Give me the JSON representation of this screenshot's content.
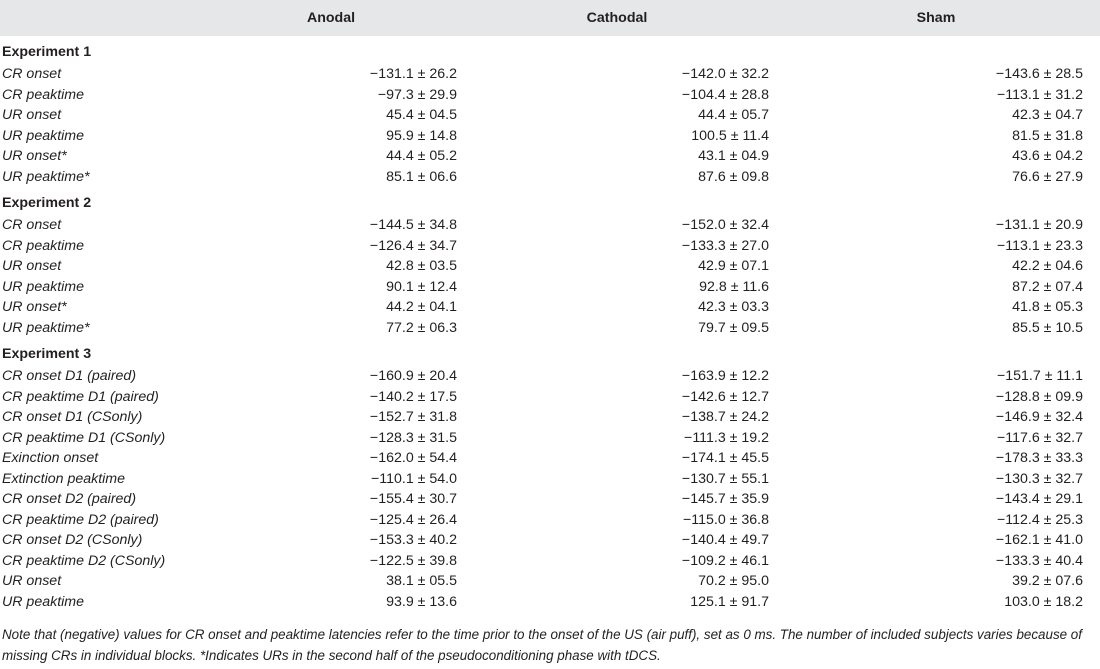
{
  "table": {
    "columns": [
      "",
      "Anodal",
      "Cathodal",
      "Sham"
    ],
    "sections": [
      {
        "title": "Experiment 1",
        "rows": [
          {
            "label": "CR onset",
            "values": [
              "−131.1 ± 26.2",
              "−142.0 ± 32.2",
              "−143.6 ± 28.5"
            ]
          },
          {
            "label": "CR peaktime",
            "values": [
              "−97.3 ± 29.9",
              "−104.4 ± 28.8",
              "−113.1 ± 31.2"
            ]
          },
          {
            "label": "UR onset",
            "values": [
              "45.4 ± 04.5",
              "44.4 ± 05.7",
              "42.3 ± 04.7"
            ]
          },
          {
            "label": "UR peaktime",
            "values": [
              "95.9 ± 14.8",
              "100.5 ± 11.4",
              "81.5 ± 31.8"
            ]
          },
          {
            "label": "UR onset*",
            "values": [
              "44.4 ± 05.2",
              "43.1 ± 04.9",
              "43.6 ± 04.2"
            ]
          },
          {
            "label": "UR peaktime*",
            "values": [
              "85.1 ± 06.6",
              "87.6 ± 09.8",
              "76.6 ± 27.9"
            ]
          }
        ]
      },
      {
        "title": "Experiment 2",
        "rows": [
          {
            "label": "CR onset",
            "values": [
              "−144.5 ± 34.8",
              "−152.0 ± 32.4",
              "−131.1 ± 20.9"
            ]
          },
          {
            "label": "CR peaktime",
            "values": [
              "−126.4 ± 34.7",
              "−133.3 ± 27.0",
              "−113.1 ± 23.3"
            ]
          },
          {
            "label": "UR onset",
            "values": [
              "42.8 ± 03.5",
              "42.9 ± 07.1",
              "42.2 ± 04.6"
            ]
          },
          {
            "label": "UR peaktime",
            "values": [
              "90.1 ± 12.4",
              "92.8 ± 11.6",
              "87.2 ± 07.4"
            ]
          },
          {
            "label": "UR onset*",
            "values": [
              "44.2 ± 04.1",
              "42.3 ± 03.3",
              "41.8 ± 05.3"
            ]
          },
          {
            "label": "UR peaktime*",
            "values": [
              "77.2 ± 06.3",
              "79.7 ± 09.5",
              "85.5 ± 10.5"
            ]
          }
        ]
      },
      {
        "title": "Experiment 3",
        "rows": [
          {
            "label": "CR onset D1 (paired)",
            "values": [
              "−160.9 ± 20.4",
              "−163.9 ± 12.2",
              "−151.7 ± 11.1"
            ]
          },
          {
            "label": "CR peaktime D1 (paired)",
            "values": [
              "−140.2 ± 17.5",
              "−142.6 ± 12.7",
              "−128.8 ± 09.9"
            ]
          },
          {
            "label": "CR onset D1 (CSonly)",
            "values": [
              "−152.7 ± 31.8",
              "−138.7 ± 24.2",
              "−146.9 ± 32.4"
            ]
          },
          {
            "label": "CR peaktime D1 (CSonly)",
            "values": [
              "−128.3 ± 31.5",
              "−111.3 ± 19.2",
              "−117.6 ± 32.7"
            ]
          },
          {
            "label": "Exinction onset",
            "values": [
              "−162.0 ± 54.4",
              "−174.1 ± 45.5",
              "−178.3 ± 33.3"
            ]
          },
          {
            "label": "Extinction peaktime",
            "values": [
              "−110.1 ± 54.0",
              "−130.7 ± 55.1",
              "−130.3 ± 32.7"
            ]
          },
          {
            "label": "CR onset D2 (paired)",
            "values": [
              "−155.4 ± 30.7",
              "−145.7 ± 35.9",
              "−143.4 ± 29.1"
            ]
          },
          {
            "label": "CR peaktime D2 (paired)",
            "values": [
              "−125.4 ± 26.4",
              "−115.0 ± 36.8",
              "−112.4 ± 25.3"
            ]
          },
          {
            "label": "CR onset D2 (CSonly)",
            "values": [
              "−153.3 ± 40.2",
              "−140.4 ± 49.7",
              "−162.1 ± 41.0"
            ]
          },
          {
            "label": "CR peaktime D2 (CSonly)",
            "values": [
              "−122.5 ± 39.8",
              "−109.2 ± 46.1",
              "−133.3 ± 40.4"
            ]
          },
          {
            "label": "UR onset",
            "values": [
              "38.1 ± 05.5",
              "70.2 ± 95.0",
              "39.2 ± 07.6"
            ]
          },
          {
            "label": "UR peaktime",
            "values": [
              "93.9 ± 13.6",
              "125.1 ± 91.7",
              "103.0 ± 18.2"
            ]
          }
        ]
      }
    ]
  },
  "note": "Note that (negative) values for CR onset and peaktime latencies refer to the time prior to the onset of the US (air puff), set as 0 ms. The number of included subjects varies because of missing CRs in individual blocks. *Indicates URs in the second half of the pseudoconditioning phase with tDCS."
}
